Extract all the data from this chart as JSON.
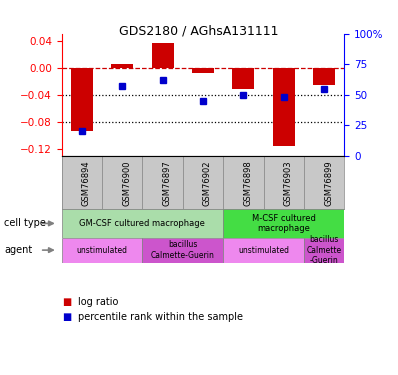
{
  "title": "GDS2180 / AGhsA131111",
  "samples": [
    "GSM76894",
    "GSM76900",
    "GSM76897",
    "GSM76902",
    "GSM76898",
    "GSM76903",
    "GSM76899"
  ],
  "log_ratio": [
    -0.093,
    0.005,
    0.037,
    -0.008,
    -0.032,
    -0.115,
    -0.025
  ],
  "percentile": [
    20,
    57,
    62,
    45,
    50,
    48,
    55
  ],
  "ylim_left": [
    -0.13,
    0.05
  ],
  "ylim_right": [
    0,
    100
  ],
  "yticks_left": [
    0.04,
    0,
    -0.04,
    -0.08,
    -0.12
  ],
  "yticks_right": [
    100,
    75,
    50,
    25,
    0
  ],
  "bar_color": "#CC0000",
  "dot_color": "#0000CC",
  "hline_dash_color": "#CC0000",
  "hline_dot_color": "#000000",
  "xticklabel_bg": "#C8C8C8",
  "cell_types": [
    {
      "label": "GM-CSF cultured macrophage",
      "span": [
        0,
        4
      ],
      "color": "#AADDAA"
    },
    {
      "label": "M-CSF cultured\nmacrophage",
      "span": [
        4,
        7
      ],
      "color": "#44DD44"
    }
  ],
  "agents": [
    {
      "label": "unstimulated",
      "span": [
        0,
        2
      ],
      "color": "#EE88EE"
    },
    {
      "label": "bacillus\nCalmette-Guerin",
      "span": [
        2,
        4
      ],
      "color": "#CC55CC"
    },
    {
      "label": "unstimulated",
      "span": [
        4,
        6
      ],
      "color": "#EE88EE"
    },
    {
      "label": "bacillus\nCalmette\n-Guerin",
      "span": [
        6,
        7
      ],
      "color": "#CC55CC"
    }
  ],
  "left_labels": [
    "cell type",
    "agent"
  ],
  "legend": [
    {
      "color": "#CC0000",
      "label": "log ratio"
    },
    {
      "color": "#0000CC",
      "label": "percentile rank within the sample"
    }
  ]
}
